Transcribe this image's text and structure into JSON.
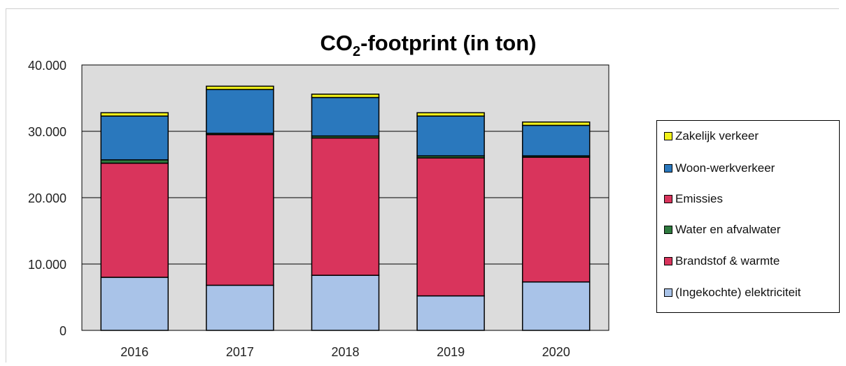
{
  "chart_data": {
    "type": "bar",
    "stacked": true,
    "title": "CO2-footprint (in ton)",
    "title_parts": {
      "main": "CO",
      "sub": "2",
      "rest": "-footprint (in ton)"
    },
    "xlabel": "",
    "ylabel": "",
    "ylim": [
      0,
      40000
    ],
    "yticks": [
      {
        "value": 0,
        "label": "0"
      },
      {
        "value": 10000,
        "label": "10.000"
      },
      {
        "value": 20000,
        "label": "20.000"
      },
      {
        "value": 30000,
        "label": "30.000"
      },
      {
        "value": 40000,
        "label": "40.000"
      }
    ],
    "grid": true,
    "legend_position": "right",
    "categories": [
      "2016",
      "2017",
      "2018",
      "2019",
      "2020"
    ],
    "series": [
      {
        "name": "(Ingekochte) elektriciteit",
        "color": "#a9c3e8",
        "values": [
          8000,
          6800,
          8300,
          5200,
          7300
        ]
      },
      {
        "name": "Brandstof & warmte",
        "color": "#d9345c",
        "values": [
          17200,
          22700,
          20700,
          20800,
          18800
        ]
      },
      {
        "name": "Water en afvalwater",
        "color": "#2e7a3e",
        "values": [
          500,
          200,
          300,
          300,
          200
        ]
      },
      {
        "name": "Emissies",
        "color": "#d9345c",
        "values": [
          0,
          0,
          0,
          0,
          0
        ]
      },
      {
        "name": "Woon-werkverkeer",
        "color": "#2a78bd",
        "values": [
          6600,
          6600,
          5800,
          6000,
          4600
        ]
      },
      {
        "name": "Zakelijk verkeer",
        "color": "#f2f21a",
        "values": [
          500,
          500,
          500,
          500,
          500
        ]
      }
    ]
  },
  "legend": {
    "items": [
      {
        "label": "Zakelijk verkeer",
        "color": "#f2f21a"
      },
      {
        "label": "Woon-werkverkeer",
        "color": "#2a78bd"
      },
      {
        "label": "Emissies",
        "color": "#d9345c"
      },
      {
        "label": "Water en afvalwater",
        "color": "#2e7a3e"
      },
      {
        "label": "Brandstof & warmte",
        "color": "#d9345c"
      },
      {
        "label": "(Ingekochte) elektriciteit",
        "color": "#a9c3e8"
      }
    ]
  },
  "colors": {
    "plot_background": "#dcdcdc",
    "gridline": "#000000"
  }
}
